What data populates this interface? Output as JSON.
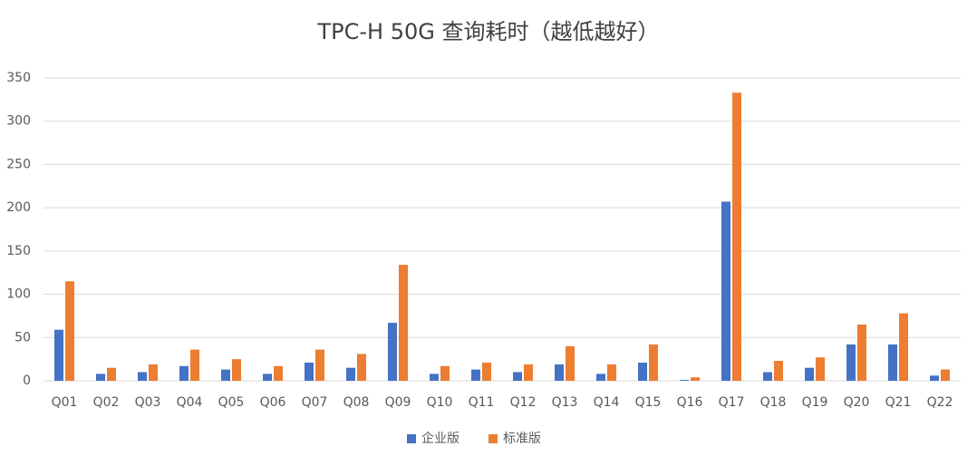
{
  "chart_data": {
    "type": "bar",
    "title": "TPC-H 50G 查询耗时（越低越好）",
    "categories": [
      "Q01",
      "Q02",
      "Q03",
      "Q04",
      "Q05",
      "Q06",
      "Q07",
      "Q08",
      "Q09",
      "Q10",
      "Q11",
      "Q12",
      "Q13",
      "Q14",
      "Q15",
      "Q16",
      "Q17",
      "Q18",
      "Q19",
      "Q20",
      "Q21",
      "Q22"
    ],
    "series": [
      {
        "name": "企业版",
        "color": "#4472c4",
        "values": [
          59,
          8,
          10,
          17,
          13,
          8,
          21,
          15,
          67,
          8,
          13,
          10,
          19,
          8,
          21,
          1,
          207,
          10,
          15,
          42,
          42,
          6
        ]
      },
      {
        "name": "标准版",
        "color": "#ed7d31",
        "values": [
          115,
          15,
          19,
          36,
          25,
          17,
          36,
          31,
          134,
          17,
          21,
          19,
          40,
          19,
          42,
          4,
          333,
          23,
          27,
          65,
          78,
          13
        ]
      }
    ],
    "ylim": [
      0,
      350
    ],
    "yticks": [
      0,
      50,
      100,
      150,
      200,
      250,
      300,
      350
    ],
    "grid": true,
    "legend": "bottom"
  }
}
